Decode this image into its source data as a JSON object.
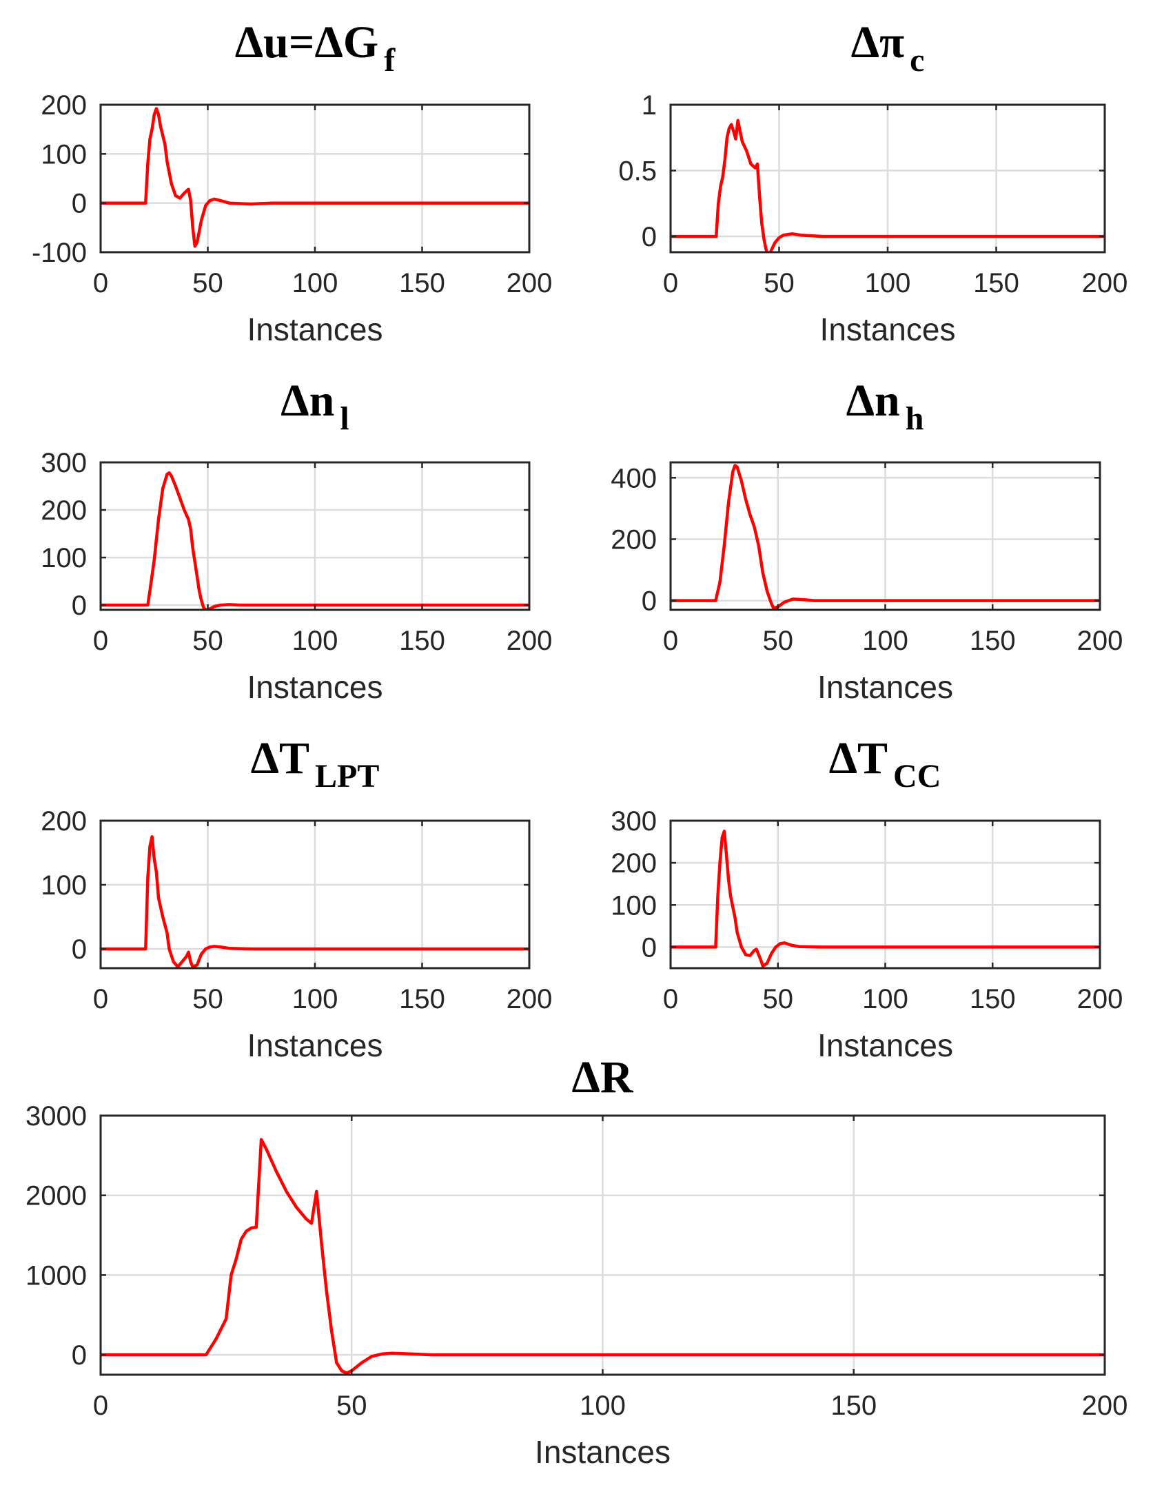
{
  "chart_data": [
    {
      "id": "du",
      "type": "line",
      "title": {
        "main": "Δu=ΔG",
        "sub": "f"
      },
      "xlabel": "Instances",
      "ylabel": "",
      "xlim": [
        0,
        200
      ],
      "ylim": [
        -100,
        200
      ],
      "xticks": [
        0,
        50,
        100,
        150,
        200
      ],
      "yticks": [
        -100,
        0,
        100,
        200
      ],
      "grid": true,
      "series": [
        {
          "name": "Δu",
          "color": "#ff0000",
          "points": [
            [
              0,
              0
            ],
            [
              20,
              0
            ],
            [
              21,
              0
            ],
            [
              22,
              80
            ],
            [
              23,
              130
            ],
            [
              24,
              150
            ],
            [
              25,
              180
            ],
            [
              26,
              192
            ],
            [
              27,
              180
            ],
            [
              28,
              155
            ],
            [
              30,
              120
            ],
            [
              31,
              85
            ],
            [
              33,
              40
            ],
            [
              35,
              15
            ],
            [
              37,
              10
            ],
            [
              39,
              20
            ],
            [
              41,
              28
            ],
            [
              42,
              5
            ],
            [
              43,
              -50
            ],
            [
              44,
              -88
            ],
            [
              45,
              -80
            ],
            [
              47,
              -35
            ],
            [
              49,
              -5
            ],
            [
              51,
              5
            ],
            [
              53,
              8
            ],
            [
              56,
              5
            ],
            [
              60,
              0
            ],
            [
              70,
              -2
            ],
            [
              80,
              0
            ],
            [
              200,
              0
            ]
          ]
        }
      ]
    },
    {
      "id": "dpi",
      "type": "line",
      "title": {
        "main": "Δπ",
        "sub": "c"
      },
      "xlabel": "Instances",
      "ylabel": "",
      "xlim": [
        0,
        200
      ],
      "ylim": [
        -0.12,
        1
      ],
      "xticks": [
        0,
        50,
        100,
        150,
        200
      ],
      "yticks": [
        0,
        0.5,
        1
      ],
      "grid": true,
      "series": [
        {
          "name": "Δπc",
          "color": "#ff0000",
          "points": [
            [
              0,
              0
            ],
            [
              20,
              0
            ],
            [
              21,
              0
            ],
            [
              22,
              0.25
            ],
            [
              23,
              0.38
            ],
            [
              24,
              0.45
            ],
            [
              25,
              0.58
            ],
            [
              26,
              0.75
            ],
            [
              27,
              0.82
            ],
            [
              28,
              0.85
            ],
            [
              29,
              0.8
            ],
            [
              30,
              0.74
            ],
            [
              31,
              0.88
            ],
            [
              32,
              0.8
            ],
            [
              33,
              0.72
            ],
            [
              35,
              0.65
            ],
            [
              37,
              0.55
            ],
            [
              39,
              0.52
            ],
            [
              40,
              0.55
            ],
            [
              41,
              0.3
            ],
            [
              42,
              0.1
            ],
            [
              43,
              -0.02
            ],
            [
              44,
              -0.1
            ],
            [
              45,
              -0.14
            ],
            [
              46,
              -0.12
            ],
            [
              48,
              -0.05
            ],
            [
              50,
              -0.01
            ],
            [
              52,
              0.01
            ],
            [
              56,
              0.02
            ],
            [
              60,
              0.01
            ],
            [
              70,
              0
            ],
            [
              200,
              0
            ]
          ]
        }
      ]
    },
    {
      "id": "dnl",
      "type": "line",
      "title": {
        "main": "Δn",
        "sub": "l"
      },
      "xlabel": "Instances",
      "ylabel": "",
      "xlim": [
        0,
        200
      ],
      "ylim": [
        -10,
        300
      ],
      "xticks": [
        0,
        50,
        100,
        150,
        200
      ],
      "yticks": [
        0,
        100,
        200,
        300
      ],
      "grid": true,
      "series": [
        {
          "name": "Δnl",
          "color": "#ff0000",
          "points": [
            [
              0,
              0
            ],
            [
              20,
              0
            ],
            [
              22,
              0
            ],
            [
              23,
              30
            ],
            [
              25,
              95
            ],
            [
              27,
              180
            ],
            [
              29,
              245
            ],
            [
              31,
              275
            ],
            [
              32,
              278
            ],
            [
              33,
              272
            ],
            [
              35,
              250
            ],
            [
              37,
              225
            ],
            [
              39,
              200
            ],
            [
              41,
              180
            ],
            [
              42,
              160
            ],
            [
              43,
              120
            ],
            [
              45,
              60
            ],
            [
              46,
              30
            ],
            [
              47,
              10
            ],
            [
              48,
              -5
            ],
            [
              49,
              -10
            ],
            [
              51,
              -8
            ],
            [
              53,
              -3
            ],
            [
              56,
              0
            ],
            [
              60,
              1
            ],
            [
              65,
              0
            ],
            [
              200,
              0
            ]
          ]
        }
      ]
    },
    {
      "id": "dnh",
      "type": "line",
      "title": {
        "main": "Δn",
        "sub": "h"
      },
      "xlabel": "Instances",
      "ylabel": "",
      "xlim": [
        0,
        200
      ],
      "ylim": [
        -30,
        450
      ],
      "xticks": [
        0,
        50,
        100,
        150,
        200
      ],
      "yticks": [
        0,
        200,
        400
      ],
      "grid": true,
      "series": [
        {
          "name": "Δnh",
          "color": "#ff0000",
          "points": [
            [
              0,
              0
            ],
            [
              20,
              0
            ],
            [
              21,
              0
            ],
            [
              23,
              60
            ],
            [
              25,
              180
            ],
            [
              27,
              320
            ],
            [
              29,
              420
            ],
            [
              30,
              440
            ],
            [
              31,
              435
            ],
            [
              33,
              390
            ],
            [
              35,
              330
            ],
            [
              37,
              280
            ],
            [
              39,
              240
            ],
            [
              41,
              180
            ],
            [
              43,
              90
            ],
            [
              45,
              30
            ],
            [
              47,
              -10
            ],
            [
              48,
              -25
            ],
            [
              50,
              -20
            ],
            [
              53,
              -5
            ],
            [
              57,
              5
            ],
            [
              62,
              3
            ],
            [
              67,
              0
            ],
            [
              200,
              0
            ]
          ]
        }
      ]
    },
    {
      "id": "dtlpt",
      "type": "line",
      "title": {
        "main": "ΔT",
        "sub": "LPT"
      },
      "xlabel": "Instances",
      "ylabel": "",
      "xlim": [
        0,
        200
      ],
      "ylim": [
        -30,
        200
      ],
      "xticks": [
        0,
        50,
        100,
        150,
        200
      ],
      "yticks": [
        0,
        100,
        200
      ],
      "grid": true,
      "series": [
        {
          "name": "ΔTLPT",
          "color": "#ff0000",
          "points": [
            [
              0,
              0
            ],
            [
              20,
              0
            ],
            [
              21,
              0
            ],
            [
              22,
              110
            ],
            [
              23,
              160
            ],
            [
              24,
              175
            ],
            [
              25,
              140
            ],
            [
              26,
              120
            ],
            [
              27,
              80
            ],
            [
              29,
              50
            ],
            [
              31,
              25
            ],
            [
              32,
              0
            ],
            [
              34,
              -20
            ],
            [
              36,
              -28
            ],
            [
              38,
              -20
            ],
            [
              40,
              -12
            ],
            [
              41,
              -5
            ],
            [
              42,
              -20
            ],
            [
              43,
              -28
            ],
            [
              45,
              -25
            ],
            [
              47,
              -8
            ],
            [
              49,
              0
            ],
            [
              51,
              3
            ],
            [
              53,
              4
            ],
            [
              56,
              3
            ],
            [
              60,
              1
            ],
            [
              70,
              0
            ],
            [
              200,
              0
            ]
          ]
        }
      ]
    },
    {
      "id": "dtcc",
      "type": "line",
      "title": {
        "main": "ΔT",
        "sub": "CC"
      },
      "xlabel": "Instances",
      "ylabel": "",
      "xlim": [
        0,
        200
      ],
      "ylim": [
        -50,
        300
      ],
      "xticks": [
        0,
        50,
        100,
        150,
        200
      ],
      "yticks": [
        0,
        100,
        200,
        300
      ],
      "grid": true,
      "series": [
        {
          "name": "ΔTCC",
          "color": "#ff0000",
          "points": [
            [
              0,
              0
            ],
            [
              20,
              0
            ],
            [
              21,
              0
            ],
            [
              22,
              120
            ],
            [
              23,
              200
            ],
            [
              24,
              260
            ],
            [
              25,
              275
            ],
            [
              26,
              220
            ],
            [
              27,
              160
            ],
            [
              28,
              120
            ],
            [
              30,
              70
            ],
            [
              31,
              35
            ],
            [
              33,
              0
            ],
            [
              35,
              -18
            ],
            [
              37,
              -20
            ],
            [
              39,
              -8
            ],
            [
              40,
              -5
            ],
            [
              42,
              -30
            ],
            [
              43,
              -45
            ],
            [
              45,
              -38
            ],
            [
              47,
              -15
            ],
            [
              49,
              0
            ],
            [
              51,
              8
            ],
            [
              53,
              10
            ],
            [
              56,
              5
            ],
            [
              60,
              1
            ],
            [
              70,
              0
            ],
            [
              200,
              0
            ]
          ]
        }
      ]
    },
    {
      "id": "dr",
      "type": "line",
      "title": {
        "main": "ΔR",
        "sub": ""
      },
      "xlabel": "Instances",
      "ylabel": "",
      "xlim": [
        0,
        200
      ],
      "ylim": [
        -250,
        3000
      ],
      "xticks": [
        0,
        50,
        100,
        150,
        200
      ],
      "yticks": [
        0,
        1000,
        2000,
        3000
      ],
      "grid": true,
      "series": [
        {
          "name": "ΔR",
          "color": "#ff0000",
          "points": [
            [
              0,
              0
            ],
            [
              20,
              0
            ],
            [
              21,
              0
            ],
            [
              23,
              200
            ],
            [
              25,
              450
            ],
            [
              26,
              1000
            ],
            [
              27,
              1200
            ],
            [
              28,
              1450
            ],
            [
              29,
              1550
            ],
            [
              30,
              1590
            ],
            [
              31,
              1600
            ],
            [
              32,
              2700
            ],
            [
              33,
              2580
            ],
            [
              35,
              2300
            ],
            [
              37,
              2050
            ],
            [
              39,
              1850
            ],
            [
              41,
              1700
            ],
            [
              42,
              1650
            ],
            [
              43,
              2050
            ],
            [
              44,
              1400
            ],
            [
              45,
              800
            ],
            [
              46,
              300
            ],
            [
              47,
              -100
            ],
            [
              48,
              -200
            ],
            [
              49,
              -230
            ],
            [
              50,
              -200
            ],
            [
              52,
              -100
            ],
            [
              54,
              -20
            ],
            [
              56,
              10
            ],
            [
              58,
              20
            ],
            [
              62,
              10
            ],
            [
              66,
              0
            ],
            [
              200,
              0
            ]
          ]
        }
      ]
    }
  ]
}
